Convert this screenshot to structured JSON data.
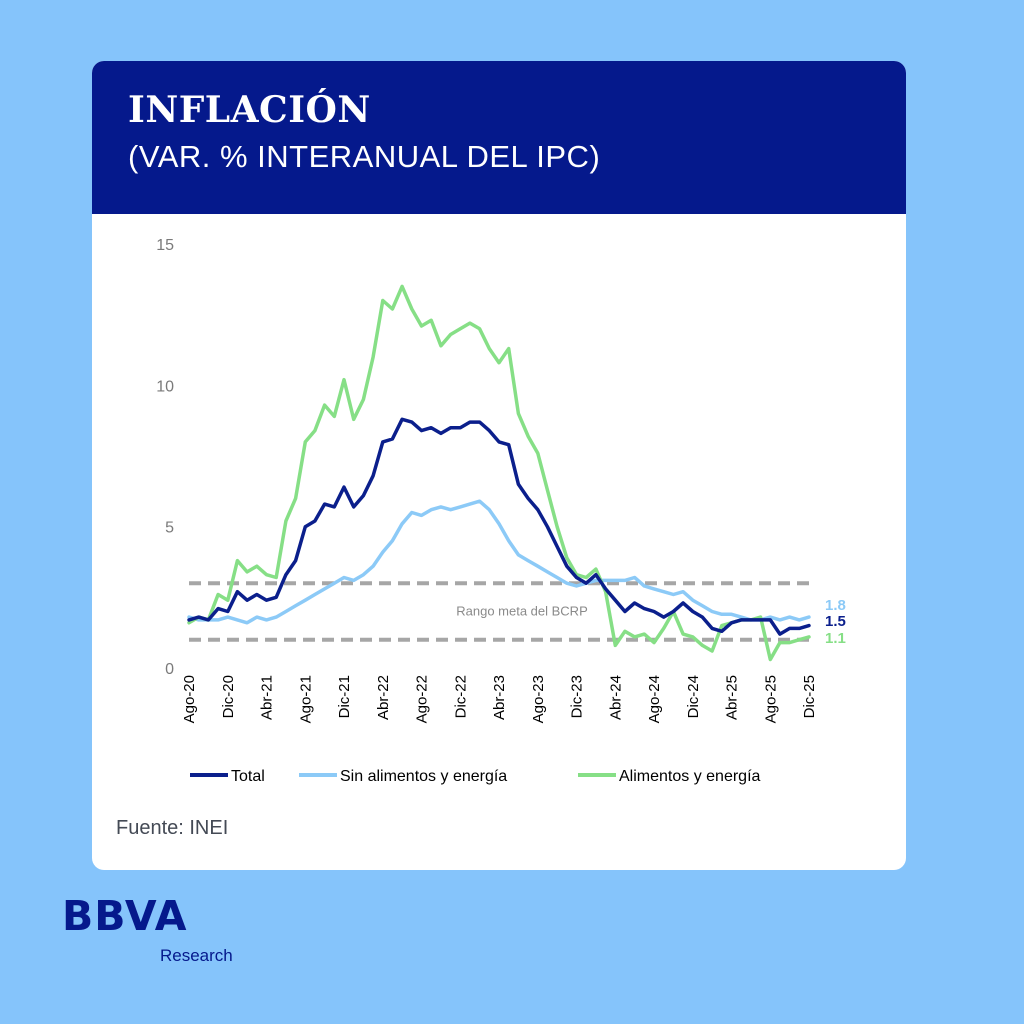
{
  "header": {
    "title": "INFLACIÓN",
    "subtitle": "(VAR. % INTERANUAL DEL IPC)"
  },
  "source": "Fuente: INEI",
  "brand": {
    "logo": "BBVA",
    "sub": "Research"
  },
  "colors": {
    "background": "#85c4fb",
    "header": "#05198c",
    "total": "#0b1f8c",
    "core": "#8ccaf7",
    "food": "#86df86",
    "target": "#a6a6a6"
  },
  "chart_data": {
    "type": "line",
    "title": "INFLACIÓN",
    "subtitle": "(VAR. % INTERANUAL DEL IPC)",
    "xlabel": "",
    "ylabel": "",
    "ylim": [
      0,
      15
    ],
    "yticks": [
      0,
      5,
      10,
      15
    ],
    "grid": false,
    "legend": "bottom",
    "x_start": "Ago-20",
    "x_ticks": [
      {
        "label": "Ago-20",
        "index": 0
      },
      {
        "label": "Dic-20",
        "index": 4
      },
      {
        "label": "Abr-21",
        "index": 8
      },
      {
        "label": "Ago-21",
        "index": 12
      },
      {
        "label": "Dic-21",
        "index": 16
      },
      {
        "label": "Abr-22",
        "index": 20
      },
      {
        "label": "Ago-22",
        "index": 24
      },
      {
        "label": "Dic-22",
        "index": 28
      },
      {
        "label": "Abr-23",
        "index": 32
      },
      {
        "label": "Ago-23",
        "index": 36
      },
      {
        "label": "Dic-23",
        "index": 40
      },
      {
        "label": "Abr-24",
        "index": 44
      },
      {
        "label": "Ago-24",
        "index": 48
      },
      {
        "label": "Dic-24",
        "index": 52
      },
      {
        "label": "Abr-25",
        "index": 56
      },
      {
        "label": "Ago-25",
        "index": 60
      },
      {
        "label": "Dic-25",
        "index": 64
      }
    ],
    "target_band": {
      "low": 1,
      "high": 3,
      "label": "Rango meta del BCRP"
    },
    "series": [
      {
        "name": "Total",
        "key": "total",
        "end_label": "1.5",
        "values": [
          1.7,
          1.8,
          1.7,
          2.1,
          2.0,
          2.7,
          2.4,
          2.6,
          2.4,
          2.5,
          3.3,
          3.8,
          5.0,
          5.2,
          5.8,
          5.7,
          6.4,
          5.7,
          6.1,
          6.8,
          8.0,
          8.1,
          8.8,
          8.7,
          8.4,
          8.5,
          8.3,
          8.5,
          8.5,
          8.7,
          8.7,
          8.4,
          8.0,
          7.9,
          6.5,
          6.0,
          5.6,
          5.0,
          4.3,
          3.6,
          3.2,
          3.0,
          3.3,
          2.8,
          2.4,
          2.0,
          2.3,
          2.1,
          2.0,
          1.8,
          2.0,
          2.3,
          2.0,
          1.8,
          1.4,
          1.3,
          1.6,
          1.7,
          1.7,
          1.7,
          1.7,
          1.2,
          1.4,
          1.4,
          1.5
        ]
      },
      {
        "name": "Sin alimentos y energía",
        "key": "core",
        "end_label": "1.8",
        "values": [
          1.8,
          1.7,
          1.7,
          1.7,
          1.8,
          1.7,
          1.6,
          1.8,
          1.7,
          1.8,
          2.0,
          2.2,
          2.4,
          2.6,
          2.8,
          3.0,
          3.2,
          3.1,
          3.3,
          3.6,
          4.1,
          4.5,
          5.1,
          5.5,
          5.4,
          5.6,
          5.7,
          5.6,
          5.7,
          5.8,
          5.9,
          5.6,
          5.1,
          4.5,
          4.0,
          3.8,
          3.6,
          3.4,
          3.2,
          3.0,
          2.9,
          3.0,
          3.1,
          3.1,
          3.1,
          3.1,
          3.2,
          2.9,
          2.8,
          2.7,
          2.6,
          2.7,
          2.4,
          2.2,
          2.0,
          1.9,
          1.9,
          1.8,
          1.7,
          1.7,
          1.8,
          1.7,
          1.8,
          1.7,
          1.8
        ]
      },
      {
        "name": "Alimentos y energía",
        "key": "food",
        "end_label": "1.1",
        "values": [
          1.6,
          1.8,
          1.7,
          2.6,
          2.4,
          3.8,
          3.4,
          3.6,
          3.3,
          3.2,
          5.2,
          6.0,
          8.0,
          8.4,
          9.3,
          8.9,
          10.2,
          8.8,
          9.5,
          11.0,
          13.0,
          12.7,
          13.5,
          12.7,
          12.1,
          12.3,
          11.4,
          11.8,
          12.0,
          12.2,
          12.0,
          11.3,
          10.8,
          11.3,
          9.0,
          8.2,
          7.6,
          6.3,
          5.0,
          3.9,
          3.3,
          3.2,
          3.5,
          2.7,
          0.8,
          1.3,
          1.1,
          1.2,
          0.9,
          1.4,
          2.0,
          1.2,
          1.1,
          0.8,
          0.6,
          1.5,
          1.6,
          1.7,
          1.7,
          1.8,
          0.3,
          0.9,
          0.9,
          1.0,
          1.1
        ]
      }
    ]
  }
}
